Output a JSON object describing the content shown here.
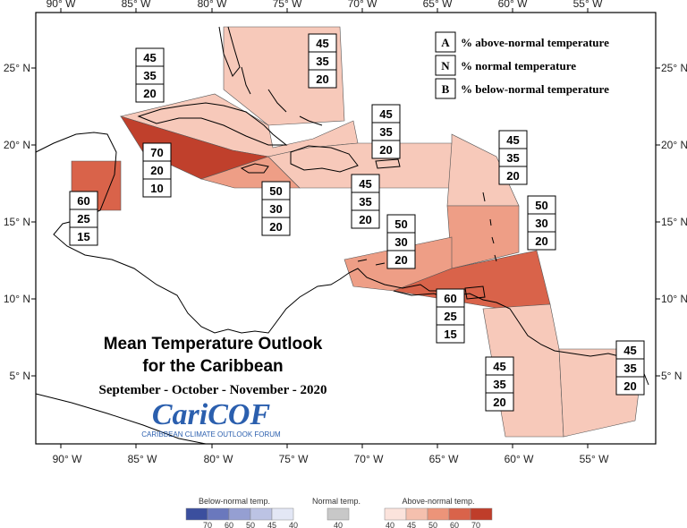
{
  "title": {
    "line1": "Mean Temperature Outlook",
    "line2": "for the Caribbean",
    "season": "September - October - November - 2020"
  },
  "logo": {
    "name": "CariCOF",
    "tagline": "CARIBBEAN CLIMATE OUTLOOK FORUM"
  },
  "axes": {
    "lon_labels": [
      "90° W",
      "85° W",
      "80° W",
      "75° W",
      "70° W",
      "65° W",
      "60° W",
      "55° W"
    ],
    "lat_labels": [
      "25° N",
      "20° N",
      "15° N",
      "10° N",
      "5° N"
    ]
  },
  "legend": {
    "items": [
      {
        "letter": "A",
        "label": "% above-normal temperature"
      },
      {
        "letter": "N",
        "label": "% normal temperature"
      },
      {
        "letter": "B",
        "label": "% below-normal temperature"
      }
    ]
  },
  "boxes": [
    {
      "a": "45",
      "n": "35",
      "b": "20"
    },
    {
      "a": "45",
      "n": "35",
      "b": "20"
    },
    {
      "a": "45",
      "n": "35",
      "b": "20"
    },
    {
      "a": "45",
      "n": "35",
      "b": "20"
    },
    {
      "a": "70",
      "n": "20",
      "b": "10"
    },
    {
      "a": "60",
      "n": "25",
      "b": "15"
    },
    {
      "a": "50",
      "n": "30",
      "b": "20"
    },
    {
      "a": "45",
      "n": "35",
      "b": "20"
    },
    {
      "a": "50",
      "n": "30",
      "b": "20"
    },
    {
      "a": "50",
      "n": "30",
      "b": "20"
    },
    {
      "a": "60",
      "n": "25",
      "b": "15"
    },
    {
      "a": "45",
      "n": "35",
      "b": "20"
    },
    {
      "a": "45",
      "n": "35",
      "b": "20"
    }
  ],
  "colorbar": {
    "below": {
      "title": "Below-normal temp.",
      "ticks": [
        "70",
        "60",
        "50",
        "45",
        "40"
      ],
      "colors": [
        "#3b4f9e",
        "#6a78bd",
        "#959fd2",
        "#bcc3e4",
        "#e3e7f5"
      ]
    },
    "normal": {
      "title": "Normal temp.",
      "ticks": [
        "40"
      ],
      "color": "#c8c8c8"
    },
    "above": {
      "title": "Above-normal temp.",
      "ticks": [
        "40",
        "45",
        "50",
        "60",
        "70"
      ],
      "colors": [
        "#fbe3dc",
        "#f5c0ae",
        "#ec9479",
        "#d9634a",
        "#bf3d2a"
      ]
    }
  },
  "colors": {
    "above_45": "#f7c9ba",
    "above_50": "#ee9e86",
    "above_60": "#d9634a",
    "above_70": "#c0402c"
  }
}
